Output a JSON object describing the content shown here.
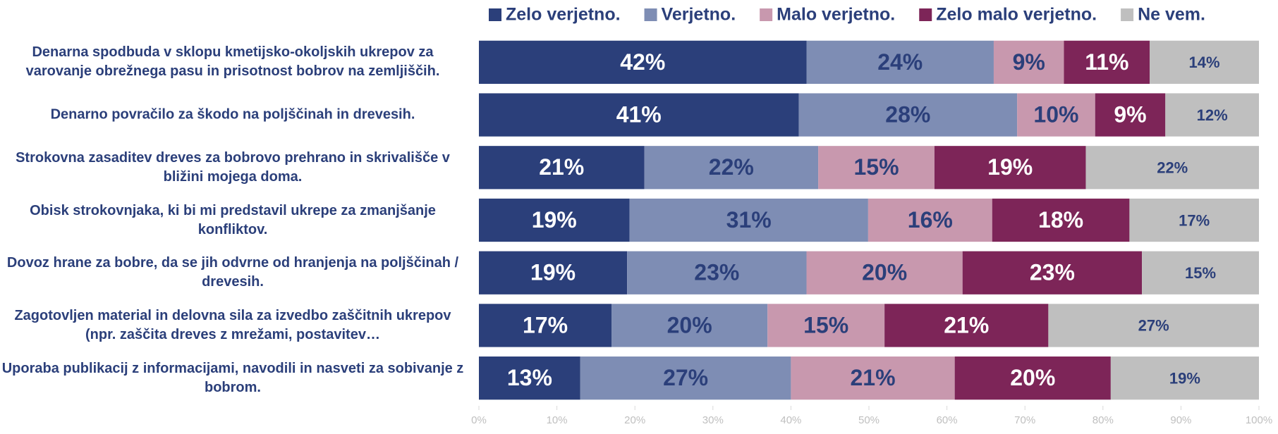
{
  "chart_data": {
    "type": "stacked_barh",
    "categories": [
      "Denarna spodbuda v sklopu kmetijsko-okoljskih ukrepov za varovanje obrežnega pasu in prisotnost bobrov na zemljiščih.",
      "Denarno povračilo za škodo na poljščinah in drevesih.",
      "Strokovna zasaditev dreves za bobrovo prehrano in skrivališče v bližini mojega doma.",
      "Obisk strokovnjaka, ki bi mi predstavil ukrepe za zmanjšanje konfliktov.",
      "Dovoz hrane za bobre, da se jih odvrne od hranjenja na poljščinah / drevesih.",
      "Zagotovljen material in delovna sila za izvedbo zaščitnih ukrepov (npr. zaščita dreves z mrežami, postavitev…",
      "Uporaba publikacij z informacijami, navodili in nasveti za sobivanje z bobrom."
    ],
    "series": [
      {
        "name": "Zelo verjetno.",
        "color": "#2b3f7a",
        "label_color": "#ffffff",
        "values": [
          42,
          41,
          21.2,
          19.3,
          19,
          17,
          13
        ],
        "value_labels": [
          "42%",
          "41%",
          "21%",
          "19%",
          "19%",
          "17%",
          "13%"
        ]
      },
      {
        "name": "Verjetno.",
        "color": "#7e8db4",
        "label_color": "#2b3f7a",
        "values": [
          24,
          28,
          22.3,
          30.6,
          23,
          20,
          27
        ],
        "value_labels": [
          "24%",
          "28%",
          "22%",
          "31%",
          "23%",
          "20%",
          "27%"
        ]
      },
      {
        "name": "Malo verjetno.",
        "color": "#c898ae",
        "label_color": "#2b3f7a",
        "values": [
          9,
          10,
          14.9,
          15.9,
          20,
          15,
          21
        ],
        "value_labels": [
          "9%",
          "10%",
          "15%",
          "16%",
          "20%",
          "15%",
          "21%"
        ]
      },
      {
        "name": "Zelo malo verjetno.",
        "color": "#7d2558",
        "label_color": "#ffffff",
        "values": [
          11,
          9,
          19.4,
          17.6,
          23,
          21,
          20
        ],
        "value_labels": [
          "11%",
          "9%",
          "19%",
          "18%",
          "23%",
          "21%",
          "20%"
        ]
      },
      {
        "name": "Ne vem.",
        "color": "#bfbfbf",
        "label_color": "#2b3f7a",
        "values": [
          14,
          12,
          22.2,
          16.6,
          15,
          27,
          19
        ],
        "value_labels": [
          "14%",
          "12%",
          "22%",
          "17%",
          "15%",
          "27%",
          "19%"
        ]
      }
    ],
    "xlim": [
      0,
      100
    ],
    "xticks": [
      {
        "value": 0,
        "label": "0%"
      },
      {
        "value": 10,
        "label": "10%"
      },
      {
        "value": 20,
        "label": "20%"
      },
      {
        "value": 30,
        "label": "30%"
      },
      {
        "value": 40,
        "label": "40%"
      },
      {
        "value": 50,
        "label": "50%"
      },
      {
        "value": 60,
        "label": "60%"
      },
      {
        "value": 70,
        "label": "70%"
      },
      {
        "value": 80,
        "label": "80%"
      },
      {
        "value": 90,
        "label": "90%"
      },
      {
        "value": 100,
        "label": "100%"
      }
    ],
    "grid": false,
    "legend": "top"
  }
}
